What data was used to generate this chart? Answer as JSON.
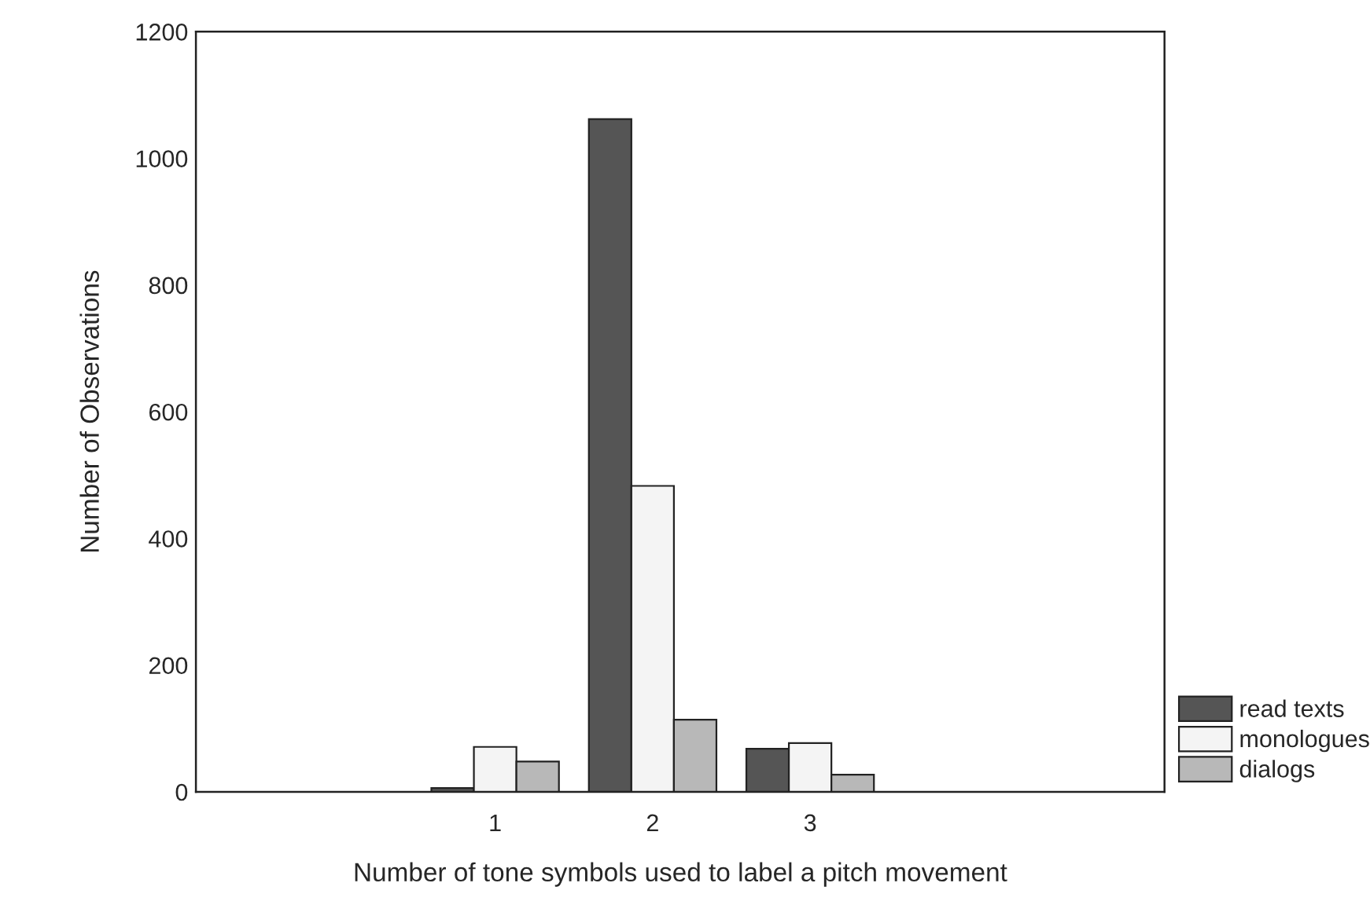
{
  "chart_data": {
    "type": "bar",
    "xlabel": "Number of tone symbols used to label a pitch movement",
    "ylabel": "Number of Observations",
    "x": [
      1,
      2,
      3
    ],
    "xlim": [
      -0.9,
      5.25
    ],
    "xticks": [
      1,
      2,
      3
    ],
    "ylim": [
      0,
      1200
    ],
    "yticks": [
      0,
      200,
      400,
      600,
      800,
      1000,
      1200
    ],
    "series": [
      {
        "name": "read texts",
        "color": "#555555",
        "values": [
          6,
          1062,
          68
        ]
      },
      {
        "name": "monologues",
        "color": "#f4f4f4",
        "values": [
          71,
          483,
          77
        ]
      },
      {
        "name": "dialogs",
        "color": "#b8b8b8",
        "values": [
          48,
          114,
          27
        ]
      }
    ],
    "grid": false,
    "legend": "right"
  }
}
